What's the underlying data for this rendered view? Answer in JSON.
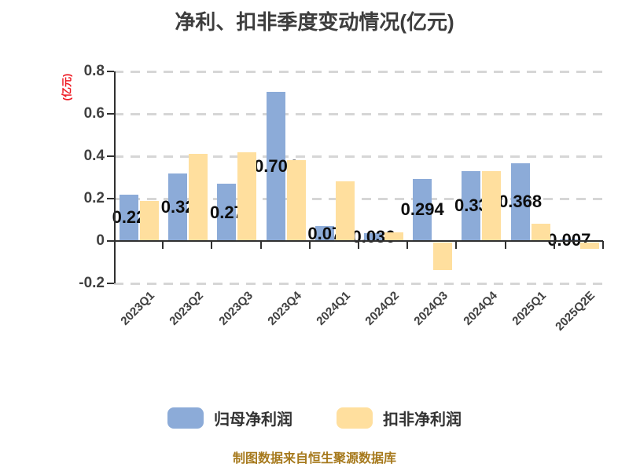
{
  "title": "净利、扣非季度变动情况(亿元)",
  "footer": "制图数据来自恒生聚源数据库",
  "colors": {
    "blue_bar": "#8CABD8",
    "yellow_bar": "#FFDF9E",
    "grid": "#d6d6d6",
    "axis": "#303030",
    "title_text": "#3d3d3d",
    "tick_text": "#404040",
    "unit_text": "#ee1c25",
    "footer_text": "#A6791C",
    "label_text": "#0d0d0d"
  },
  "chart_data": {
    "type": "bar",
    "title": "净利、扣非季度变动情况(亿元)",
    "ylabel": "(亿元)",
    "ylim": [
      -0.2,
      0.8
    ],
    "yticks": [
      0.8,
      0.6,
      0.4,
      0.2,
      0,
      -0.2
    ],
    "ytick_labels": [
      "0.8",
      "0.6",
      "0.4",
      "0.2",
      "0",
      "-0.2"
    ],
    "grid": true,
    "legend_position": "bottom",
    "categories": [
      "2023Q1",
      "2023Q2",
      "2023Q3",
      "2023Q4",
      "2024Q1",
      "2024Q2",
      "2024Q3",
      "2024Q4",
      "2025Q1",
      "2025Q2E"
    ],
    "series": [
      {
        "name": "归母净利润",
        "color": "#8CABD8",
        "values": [
          0.22,
          0.32,
          0.27,
          0.704,
          0.07,
          0.036,
          0.294,
          0.33,
          0.368,
          0.007
        ],
        "data_labels": [
          "0.22",
          "0.32",
          "0.27",
          "0.704",
          "0.07",
          "0.036",
          "0.294",
          "0.33",
          "0.368",
          "0.007"
        ]
      },
      {
        "name": "扣非净利润",
        "color": "#FFDF9E",
        "values": [
          0.19,
          0.41,
          0.42,
          0.38,
          0.28,
          0.04,
          -0.13,
          0.33,
          0.08,
          -0.03
        ],
        "data_labels": null
      }
    ]
  }
}
